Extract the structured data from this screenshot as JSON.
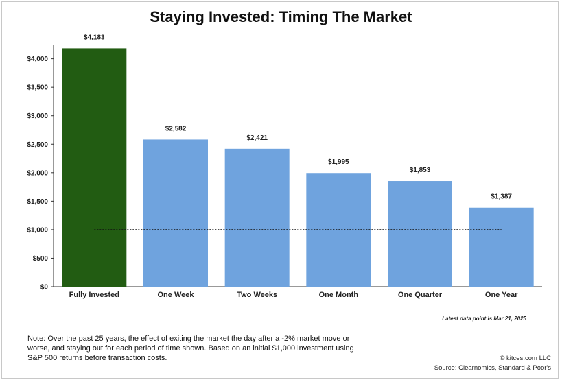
{
  "title": "Staying Invested: Timing The Market",
  "chart_data": {
    "type": "bar",
    "title": "Staying Invested: Timing The Market",
    "categories": [
      "Fully Invested",
      "One Week",
      "Two Weeks",
      "One Month",
      "One Quarter",
      "One Year"
    ],
    "values": [
      4183,
      2582,
      2421,
      1995,
      1853,
      1387
    ],
    "value_labels": [
      "$4,183",
      "$2,582",
      "$2,421",
      "$1,995",
      "$1,853",
      "$1,387"
    ],
    "yticks": [
      0,
      500,
      1000,
      1500,
      2000,
      2500,
      3000,
      3500,
      4000
    ],
    "ytick_labels": [
      "$0",
      "$500",
      "$1,000",
      "$1,500",
      "$2,000",
      "$2,500",
      "$3,000",
      "$3,500",
      "$4,000"
    ],
    "ylim": [
      0,
      4200
    ],
    "reference_line": 1000,
    "grid": false,
    "xlabel": "",
    "ylabel": "",
    "colors": {
      "highlight": "#225c12",
      "bars": "#6fa3de",
      "reference_line": "#111111"
    }
  },
  "footer": {
    "latest": "Latest data point is Mar 21, 2025",
    "note": "Note: Over the past 25 years, the effect of exiting the market the day after a -2% market move or worse, and staying out for each period of time shown. Based on an initial $1,000 investment using S&P 500 returns before transaction costs.",
    "copyright": "© kitces.com LLC",
    "source": "Source: Clearnomics, Standard & Poor's"
  }
}
